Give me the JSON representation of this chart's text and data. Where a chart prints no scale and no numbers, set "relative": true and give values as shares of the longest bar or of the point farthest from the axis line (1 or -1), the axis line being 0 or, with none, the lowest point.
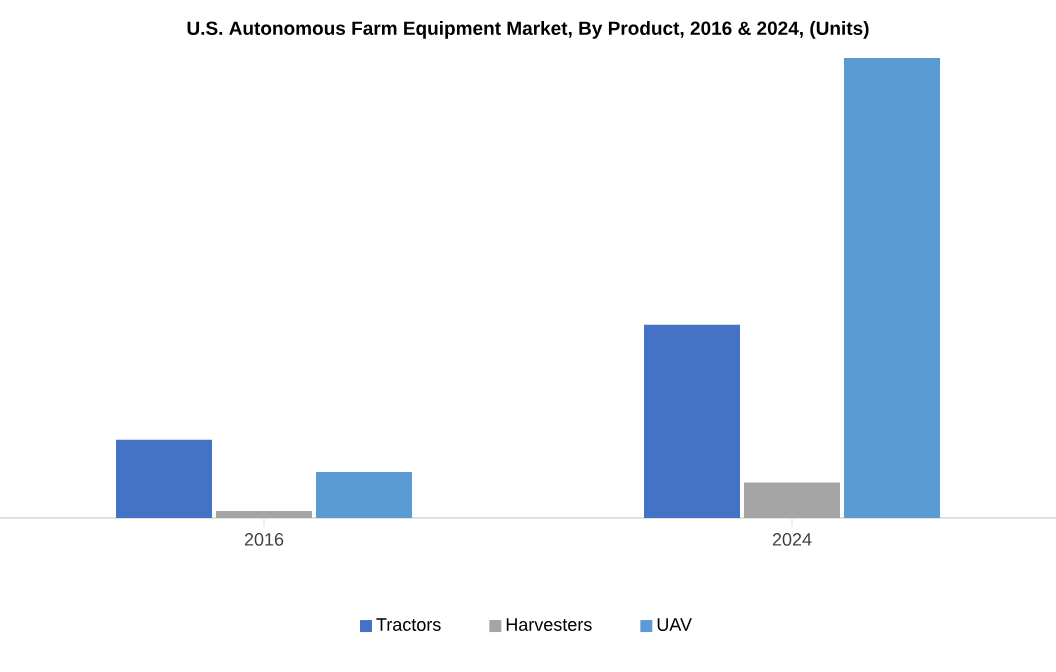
{
  "chart_data": {
    "type": "bar",
    "title": "U.S. Autonomous Farm Equipment Market, By Product, 2016 & 2024, (Units)",
    "categories": [
      "2016",
      "2024"
    ],
    "relative": true,
    "legend": "bottom",
    "series": [
      {
        "name": "Tractors",
        "color": "#4472c4",
        "values": [
          0.17,
          0.42
        ]
      },
      {
        "name": "Harvesters",
        "color": "#a5a5a5",
        "values": [
          0.015,
          0.077
        ]
      },
      {
        "name": "UAV",
        "color": "#5b9bd5",
        "values": [
          0.1,
          1
        ]
      }
    ]
  }
}
